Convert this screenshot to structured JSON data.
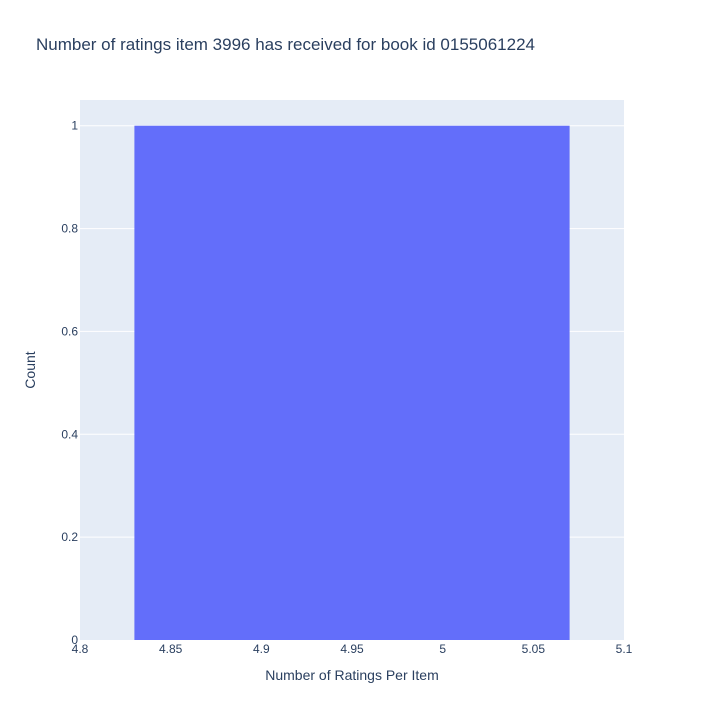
{
  "chart_data": {
    "type": "bar",
    "title": "Number of ratings item 3996 has received for book id 0155061224",
    "xlabel": "Number of Ratings Per Item",
    "ylabel": "Count",
    "xlim": [
      4.8,
      5.1
    ],
    "ylim": [
      0,
      1.05
    ],
    "x_ticks": [
      "4.8",
      "4.85",
      "4.9",
      "4.95",
      "5",
      "5.05",
      "5.1"
    ],
    "y_ticks": [
      "0",
      "0.2",
      "0.4",
      "0.6",
      "0.8",
      "1"
    ],
    "bars": [
      {
        "x_start": 4.83,
        "x_end": 5.07,
        "value": 1
      }
    ],
    "grid": true,
    "colors": {
      "bar": "#636efa",
      "plot_bg": "#e5ecf6",
      "grid": "#ffffff",
      "text": "#2a3f5f"
    }
  }
}
